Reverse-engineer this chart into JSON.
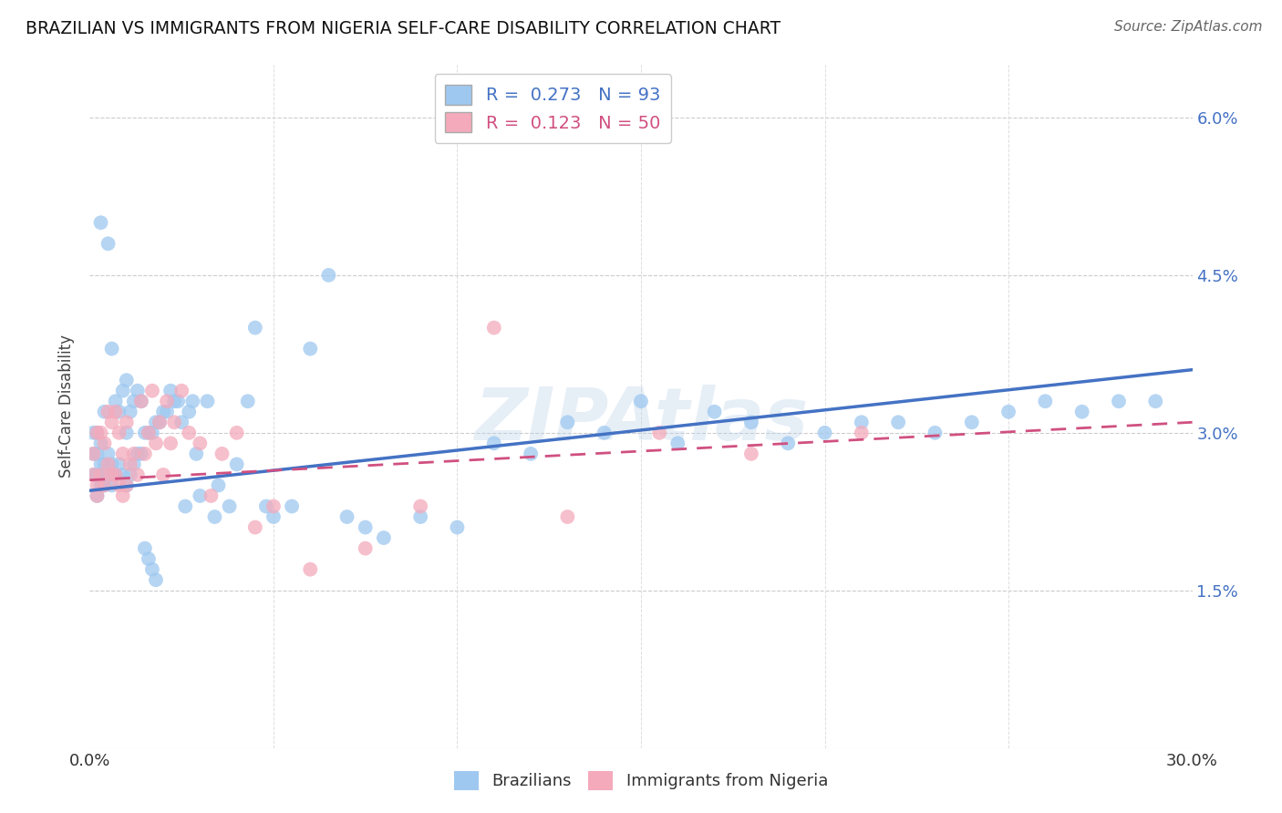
{
  "title": "BRAZILIAN VS IMMIGRANTS FROM NIGERIA SELF-CARE DISABILITY CORRELATION CHART",
  "source": "Source: ZipAtlas.com",
  "ylabel": "Self-Care Disability",
  "xlim": [
    0.0,
    0.3
  ],
  "ylim": [
    0.0,
    0.065
  ],
  "yticks": [
    0.0,
    0.015,
    0.03,
    0.045,
    0.06
  ],
  "ytick_labels": [
    "",
    "1.5%",
    "3.0%",
    "4.5%",
    "6.0%"
  ],
  "xticks": [
    0.0,
    0.05,
    0.1,
    0.15,
    0.2,
    0.25,
    0.3
  ],
  "xtick_labels": [
    "0.0%",
    "",
    "",
    "",
    "",
    "",
    "30.0%"
  ],
  "R_brazilian": 0.273,
  "N_brazilian": 93,
  "R_nigeria": 0.123,
  "N_nigeria": 50,
  "color_brazilian": "#9EC8F0",
  "color_nigeria": "#F4AABB",
  "line_color_brazilian": "#4472C4",
  "line_color_nigeria": "#D05080",
  "watermark": "ZIPAtlas",
  "legend_label_1": "Brazilians",
  "legend_label_2": "Immigrants from Nigeria",
  "brazilian_x": [
    0.001,
    0.001,
    0.001,
    0.002,
    0.002,
    0.002,
    0.002,
    0.003,
    0.003,
    0.003,
    0.003,
    0.004,
    0.004,
    0.004,
    0.005,
    0.005,
    0.005,
    0.006,
    0.006,
    0.006,
    0.007,
    0.007,
    0.008,
    0.008,
    0.009,
    0.009,
    0.01,
    0.01,
    0.01,
    0.011,
    0.011,
    0.012,
    0.012,
    0.013,
    0.013,
    0.014,
    0.014,
    0.015,
    0.016,
    0.017,
    0.018,
    0.019,
    0.02,
    0.021,
    0.022,
    0.023,
    0.024,
    0.025,
    0.026,
    0.027,
    0.028,
    0.029,
    0.03,
    0.032,
    0.034,
    0.035,
    0.038,
    0.04,
    0.043,
    0.045,
    0.048,
    0.05,
    0.055,
    0.06,
    0.065,
    0.07,
    0.075,
    0.08,
    0.09,
    0.1,
    0.11,
    0.12,
    0.13,
    0.14,
    0.15,
    0.16,
    0.17,
    0.18,
    0.19,
    0.2,
    0.21,
    0.22,
    0.23,
    0.24,
    0.25,
    0.26,
    0.27,
    0.28,
    0.29,
    0.015,
    0.016,
    0.017,
    0.018
  ],
  "brazilian_y": [
    0.026,
    0.028,
    0.03,
    0.024,
    0.026,
    0.028,
    0.03,
    0.025,
    0.027,
    0.029,
    0.05,
    0.025,
    0.027,
    0.032,
    0.026,
    0.028,
    0.048,
    0.025,
    0.027,
    0.038,
    0.026,
    0.033,
    0.027,
    0.032,
    0.026,
    0.034,
    0.025,
    0.03,
    0.035,
    0.026,
    0.032,
    0.027,
    0.033,
    0.028,
    0.034,
    0.028,
    0.033,
    0.03,
    0.03,
    0.03,
    0.031,
    0.031,
    0.032,
    0.032,
    0.034,
    0.033,
    0.033,
    0.031,
    0.023,
    0.032,
    0.033,
    0.028,
    0.024,
    0.033,
    0.022,
    0.025,
    0.023,
    0.027,
    0.033,
    0.04,
    0.023,
    0.022,
    0.023,
    0.038,
    0.045,
    0.022,
    0.021,
    0.02,
    0.022,
    0.021,
    0.029,
    0.028,
    0.031,
    0.03,
    0.033,
    0.029,
    0.032,
    0.031,
    0.029,
    0.03,
    0.031,
    0.031,
    0.03,
    0.031,
    0.032,
    0.033,
    0.032,
    0.033,
    0.033,
    0.019,
    0.018,
    0.017,
    0.016
  ],
  "nigeria_x": [
    0.001,
    0.001,
    0.002,
    0.002,
    0.002,
    0.003,
    0.003,
    0.004,
    0.004,
    0.005,
    0.005,
    0.006,
    0.006,
    0.007,
    0.007,
    0.008,
    0.008,
    0.009,
    0.009,
    0.01,
    0.01,
    0.011,
    0.012,
    0.013,
    0.014,
    0.015,
    0.016,
    0.017,
    0.018,
    0.019,
    0.02,
    0.021,
    0.022,
    0.023,
    0.025,
    0.027,
    0.03,
    0.033,
    0.036,
    0.04,
    0.045,
    0.05,
    0.06,
    0.075,
    0.09,
    0.11,
    0.13,
    0.155,
    0.18,
    0.21
  ],
  "nigeria_y": [
    0.026,
    0.028,
    0.025,
    0.03,
    0.024,
    0.026,
    0.03,
    0.025,
    0.029,
    0.027,
    0.032,
    0.026,
    0.031,
    0.026,
    0.032,
    0.025,
    0.03,
    0.024,
    0.028,
    0.025,
    0.031,
    0.027,
    0.028,
    0.026,
    0.033,
    0.028,
    0.03,
    0.034,
    0.029,
    0.031,
    0.026,
    0.033,
    0.029,
    0.031,
    0.034,
    0.03,
    0.029,
    0.024,
    0.028,
    0.03,
    0.021,
    0.023,
    0.017,
    0.019,
    0.023,
    0.04,
    0.022,
    0.03,
    0.028,
    0.03
  ],
  "trendline_blue_x0": 0.0,
  "trendline_blue_y0": 0.0245,
  "trendline_blue_x1": 0.3,
  "trendline_blue_y1": 0.036,
  "trendline_pink_x0": 0.0,
  "trendline_pink_y0": 0.0255,
  "trendline_pink_x1": 0.3,
  "trendline_pink_y1": 0.031
}
